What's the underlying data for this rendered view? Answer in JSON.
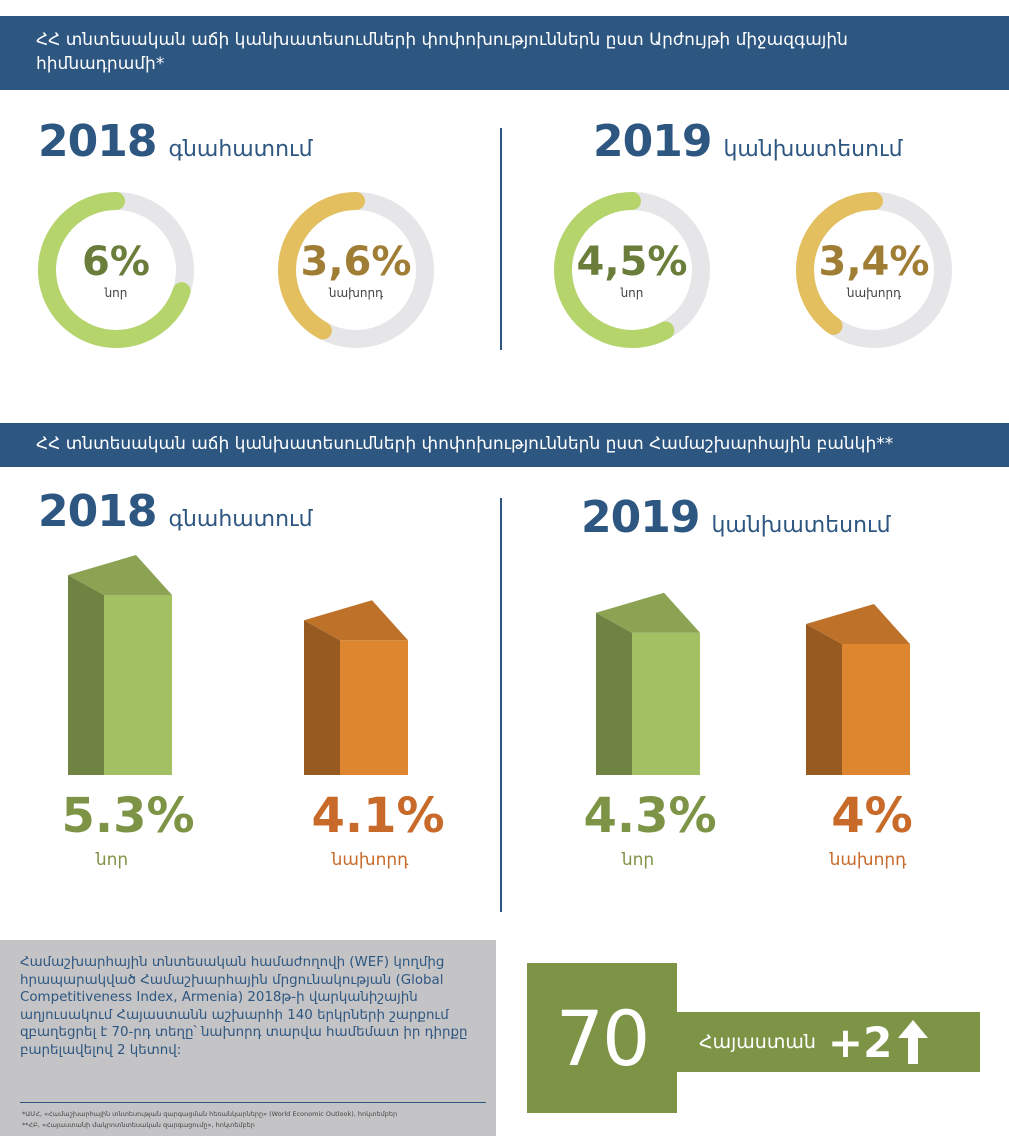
{
  "imf_section": {
    "header": "ՀՀ տնտեսական աճի կանխատեսումների փոփոխություններն ըստ Արժույթի միջազգային հիմնադրամի*",
    "left": {
      "year": "2018",
      "word": "գնահատում",
      "rings": [
        {
          "value_text": "6%",
          "label": "նոր",
          "percent": 0.7,
          "color": "#b5d46b",
          "text_color": "#6b7d3a"
        },
        {
          "value_text": "3,6%",
          "label": "նախորդ",
          "percent": 0.42,
          "color": "#e3bf5f",
          "text_color": "#a07d35"
        }
      ]
    },
    "right": {
      "year": "2019",
      "word": "կանխատեսում",
      "rings": [
        {
          "value_text": "4,5%",
          "label": "նոր",
          "percent": 0.58,
          "color": "#b5d46b",
          "text_color": "#6b7d3a"
        },
        {
          "value_text": "3,4%",
          "label": "նախորդ",
          "percent": 0.4,
          "color": "#e3bf5f",
          "text_color": "#a07d35"
        }
      ]
    }
  },
  "wb_section": {
    "header": "ՀՀ տնտեսական աճի կանխատեսումների փոփոխություններն ըստ Համաշխարհային բանկի**",
    "left": {
      "year": "2018",
      "word": "գնահատում"
    },
    "right": {
      "year": "2019",
      "word": "կանխատեսում"
    }
  },
  "chart_data": {
    "type": "bar",
    "categories": [
      "2018 գնահատում",
      "2019 կանխատեսում"
    ],
    "series": [
      {
        "name": "նոր",
        "values": [
          5.3,
          4.3
        ],
        "labels": [
          "5.3%",
          "4.3%"
        ],
        "color": "#a3c062"
      },
      {
        "name": "նախորդ",
        "values": [
          4.1,
          4.0
        ],
        "labels": [
          "4.1%",
          "4%"
        ],
        "color": "#de8530"
      }
    ],
    "title": "ՀՀ տնտեսական աճի կանխատեսումների փոփոխություններն ըստ Համաշխարհային բանկի**",
    "ylabel": "",
    "ylim": [
      0,
      5.3
    ],
    "value_color_new": "#7d9446",
    "value_color_prev": "#c86a2a"
  },
  "wef": {
    "text": "Համաշխարհային տնտեսական համաժողովի (WEF) կողմից հրապարակված Համաշխարհային մրցունակության (Global Competitiveness Index, Armenia) 2018թ-ի վարկանիշային աղյուսակում Հայաստանն աշխարհի 140 երկրների շարքում զբաղեցրել է 70-րդ տեղը՝ նախորդ տարվա համեմատ իր դիրքը բարելավելով 2 կետով:",
    "notes": [
      "*ԱՄՀ, «Համաշխարհային տնտեսության զարգացման հեռանկարները» (World Economic Outlook), հոկտեմբեր",
      "**ՀԲ, «Հայաստանի մակրոտնտեսական զարգացումը», հոկտեմբեր"
    ],
    "rank": "70",
    "country": "Հայաստան",
    "change": "+2",
    "box_color": "#7d9446"
  },
  "icons": {
    "up_arrow": "up-arrow-icon"
  }
}
